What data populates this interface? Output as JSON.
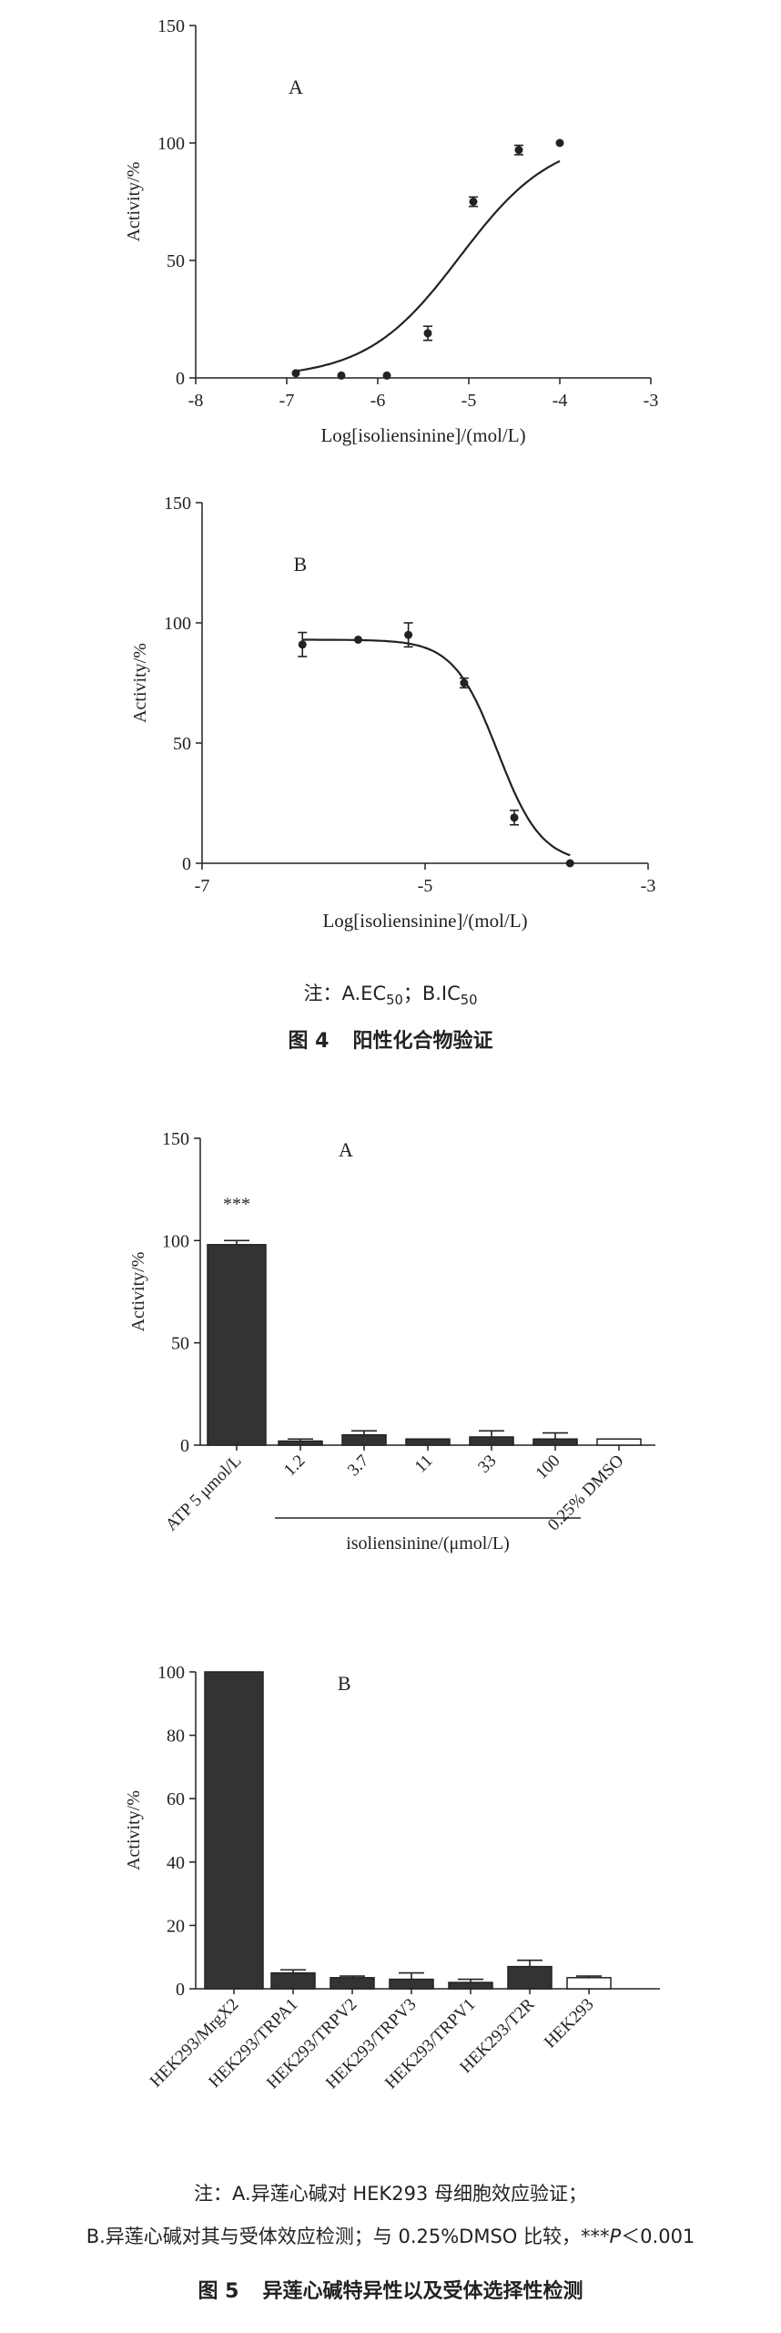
{
  "figure4": {
    "note": {
      "prefix": "注：A.EC",
      "ec_sub": "50",
      "middle": "；B.IC",
      "ic_sub": "50"
    },
    "number": "图 4",
    "title": "阳性化合物验证"
  },
  "figure5": {
    "note_line1": "注：A.异莲心碱对 HEK293 母细胞效应验证；",
    "note_line2_start": "B.异莲心碱对其与受体效应检测；与 0.25%DMSO 比较，***",
    "note_line2_p": "P",
    "note_line2_end": "＜0.001",
    "number": "图 5",
    "title": "异莲心碱特异性以及受体选择性检测"
  },
  "chart_data": [
    {
      "id": "fig4A",
      "type": "scatter",
      "panel_label": "A",
      "xlabel": "Log[isoliensinine]/(mol/L)",
      "ylabel": "Activity/%",
      "xlim": [
        -8,
        -3
      ],
      "ylim": [
        0,
        150
      ],
      "xticks": [
        -8,
        -7,
        -6,
        -5,
        -4,
        -3
      ],
      "yticks": [
        0,
        50,
        100,
        150
      ],
      "points": [
        {
          "x": -6.9,
          "y": 2,
          "err": 0
        },
        {
          "x": -6.4,
          "y": 1,
          "err": 0
        },
        {
          "x": -5.9,
          "y": 1,
          "err": 0
        },
        {
          "x": -5.45,
          "y": 19,
          "err": 3
        },
        {
          "x": -4.95,
          "y": 75,
          "err": 2
        },
        {
          "x": -4.45,
          "y": 97,
          "err": 2
        },
        {
          "x": -4.0,
          "y": 100,
          "err": 0
        }
      ],
      "fit": {
        "bottom": 0,
        "top": 103,
        "logEC50": -5.1,
        "hill": 0.85,
        "x_from": -6.9,
        "x_to": -4.0
      }
    },
    {
      "id": "fig4B",
      "type": "scatter",
      "panel_label": "B",
      "xlabel": "Log[isoliensinine]/(mol/L)",
      "ylabel": "Activity/%",
      "xlim": [
        -7,
        -3
      ],
      "ylim": [
        0,
        150
      ],
      "xticks": [
        -7,
        -5,
        -3
      ],
      "yticks": [
        0,
        50,
        100,
        150
      ],
      "points": [
        {
          "x": -6.1,
          "y": 91,
          "err": 5
        },
        {
          "x": -5.6,
          "y": 93,
          "err": 0
        },
        {
          "x": -5.15,
          "y": 95,
          "err": 5
        },
        {
          "x": -4.65,
          "y": 75,
          "err": 2
        },
        {
          "x": -4.2,
          "y": 19,
          "err": 3
        },
        {
          "x": -3.7,
          "y": 0,
          "err": 0
        }
      ],
      "fit": {
        "bottom": 0,
        "top": 93,
        "logIC50": -4.35,
        "hill": 2.2,
        "x_from": -6.1,
        "x_to": -3.7
      }
    },
    {
      "id": "fig5A",
      "type": "bar",
      "panel_label": "A",
      "ylabel": "Activity/%",
      "ylim": [
        0,
        150
      ],
      "yticks": [
        0,
        50,
        100,
        150
      ],
      "categories": [
        "ATP 5 μmol/L",
        "1.2",
        "3.7",
        "11",
        "33",
        "100",
        "0.25% DMSO"
      ],
      "values": [
        98,
        2,
        5,
        3,
        4,
        3,
        3
      ],
      "errors": [
        2,
        1,
        2,
        0,
        3,
        3,
        0
      ],
      "fills": [
        "#333333",
        "#333333",
        "#333333",
        "#333333",
        "#333333",
        "#333333",
        "#ffffff"
      ],
      "group_label": "isoliensinine/(μmol/L)",
      "annotation": "***"
    },
    {
      "id": "fig5B",
      "type": "bar",
      "panel_label": "B",
      "ylabel": "Activity/%",
      "ylim": [
        0,
        100
      ],
      "yticks": [
        0,
        20,
        40,
        60,
        80,
        100
      ],
      "categories": [
        "HEK293/MrgX2",
        "HEK293/TRPA1",
        "HEK293/TRPV2",
        "HEK293/TRPV3",
        "HEK293/TRPV1",
        "HEK293/T2R",
        "HEK293"
      ],
      "values": [
        100,
        5,
        3.5,
        3,
        2,
        7,
        3.5
      ],
      "errors": [
        0,
        1,
        0.5,
        2,
        1,
        2,
        0.5
      ],
      "fills": [
        "#333333",
        "#333333",
        "#333333",
        "#333333",
        "#333333",
        "#333333",
        "#ffffff"
      ]
    }
  ]
}
